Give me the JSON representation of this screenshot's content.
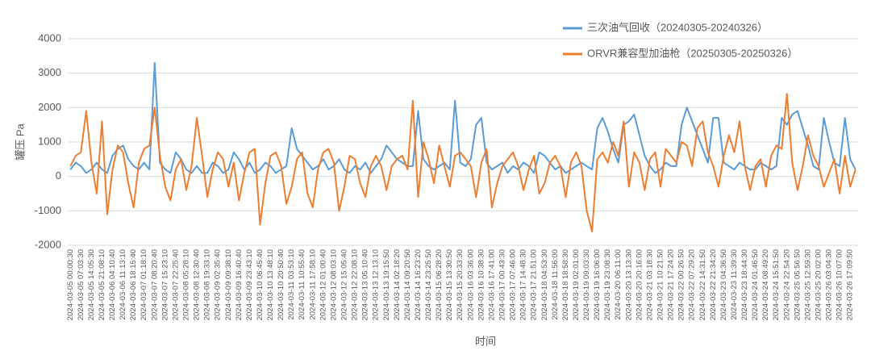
{
  "chart_data": {
    "type": "line",
    "y_label": "罐压 Pa",
    "x_label": "时间",
    "ylim": [
      -2000,
      4000
    ],
    "yticks": [
      -2000,
      -1000,
      0,
      1000,
      2000,
      3000,
      4000
    ],
    "grid": true,
    "legend": "top-right",
    "categories": [
      "2024-03-05 00:00:30",
      null,
      "2024-03-05 07:03:30",
      null,
      "2024-03-05 14:05:30",
      null,
      "2024-03-05 21:08:10",
      null,
      "2024-03-06 04:10:40",
      null,
      "2024-03-06 11:13:10",
      null,
      "2024-03-06 18:15:40",
      null,
      "2024-03-07 01:18:10",
      null,
      "2024-03-07 08:20:40",
      null,
      "2024-03-07 15:23:10",
      null,
      "2024-03-07 22:25:40",
      null,
      "2024-03-08 05:28:10",
      null,
      "2024-03-08 12:30:40",
      null,
      "2024-03-08 19:33:10",
      null,
      "2024-03-09 02:35:40",
      null,
      "2024-03-09 09:38:10",
      null,
      "2024-03-09 16:40:40",
      null,
      "2024-03-09 23:43:10",
      null,
      "2024-03-10 06:45:40",
      null,
      "2024-03-10 13:48:10",
      null,
      "2024-03-10 20:50:40",
      null,
      "2024-03-11 03:53:10",
      null,
      "2024-03-11 10:55:40",
      null,
      "2024-03-11 17:58:10",
      null,
      "2024-03-12 01:00:40",
      null,
      "2024-03-12 08:03:10",
      null,
      "2024-03-12 15:05:40",
      null,
      "2024-03-12 22:08:10",
      null,
      "2024-03-13 05:10:40",
      null,
      "2024-03-13 12:13:10",
      null,
      "2024-03-13 19:15:50",
      null,
      "2024-03-14 02:18:20",
      null,
      "2024-03-14 09:20:50",
      null,
      "2024-03-14 16:23:20",
      null,
      "2024-03-14 23:25:50",
      null,
      "2024-03-15 06:28:20",
      null,
      "2024-03-15 13:30:50",
      null,
      "2024-03-15 20:33:30",
      null,
      "2024-03-16 03:36:00",
      null,
      "2024-03-16 10:38:30",
      null,
      "2024-03-16 17:41:00",
      null,
      "2024-03-17 00:43:30",
      null,
      "2024-03-17 07:46:00",
      null,
      "2024-03-17 14:48:30",
      null,
      "2024-03-17 21:51:00",
      null,
      "2024-03-18 04:53:30",
      null,
      "2024-03-18 11:56:00",
      null,
      "2024-03-18 18:58:30",
      null,
      "2024-03-19 02:01:00",
      null,
      "2024-03-19 09:03:30",
      null,
      "2024-03-19 16:06:00",
      null,
      "2024-03-19 23:08:30",
      null,
      "2024-03-20 06:11:00",
      null,
      "2024-03-20 13:13:30",
      null,
      "2024-03-20 20:16:00",
      null,
      "2024-03-21 03:18:30",
      null,
      "2024-03-21 10:21:50",
      null,
      "2024-03-21 17:24:20",
      null,
      "2024-03-22 00:26:50",
      null,
      "2024-03-22 07:29:20",
      null,
      "2024-03-22 14:31:50",
      null,
      "2024-03-22 21:34:20",
      null,
      "2024-03-23 04:36:50",
      null,
      "2024-03-23 11:39:30",
      null,
      "2024-03-23 18:44:30",
      null,
      "2024-03-24 01:46:50",
      null,
      "2024-03-24 08:49:20",
      null,
      "2024-03-24 15:51:50",
      null,
      "2024-03-24 22:54:20",
      null,
      "2024-03-25 05:56:50",
      null,
      "2024-03-25 12:59:30",
      null,
      "2024-03-25 20:02:00",
      null,
      "2024-03-26 03:04:30",
      null,
      "2024-03-26 10:07:00",
      null,
      "2024-03-26 17:09:50",
      null
    ],
    "series": [
      {
        "name": "三次油气回收（20240305-20240326）",
        "color": "#5b9bd5",
        "values": [
          200,
          400,
          300,
          100,
          200,
          400,
          200,
          100,
          600,
          800,
          900,
          500,
          300,
          200,
          400,
          200,
          3300,
          400,
          200,
          100,
          700,
          500,
          200,
          100,
          300,
          100,
          100,
          400,
          300,
          100,
          200,
          700,
          500,
          200,
          400,
          100,
          200,
          400,
          300,
          100,
          200,
          300,
          1400,
          800,
          600,
          400,
          200,
          300,
          500,
          200,
          300,
          500,
          200,
          100,
          300,
          200,
          400,
          100,
          300,
          500,
          900,
          700,
          500,
          400,
          300,
          300,
          1900,
          500,
          300,
          200,
          300,
          400,
          200,
          2200,
          400,
          300,
          500,
          1500,
          1700,
          400,
          200,
          300,
          400,
          100,
          300,
          200,
          400,
          300,
          100,
          700,
          600,
          400,
          200,
          300,
          100,
          200,
          300,
          400,
          300,
          200,
          1400,
          1700,
          1300,
          800,
          400,
          1500,
          1600,
          1800,
          1200,
          600,
          300,
          100,
          200,
          400,
          300,
          300,
          1500,
          2000,
          1600,
          1200,
          800,
          400,
          1700,
          1700,
          400,
          300,
          200,
          400,
          300,
          200,
          200,
          400,
          300,
          200,
          300,
          1700,
          1500,
          1800,
          1900,
          1400,
          900,
          300,
          200,
          1700,
          1000,
          400,
          300,
          1700,
          500,
          200
        ]
      },
      {
        "name": "ORVR兼容型加油枪（20250305-20250326）",
        "color": "#ed7d31",
        "values": [
          300,
          600,
          700,
          1900,
          400,
          -500,
          1600,
          -1100,
          200,
          900,
          700,
          -200,
          -900,
          400,
          800,
          900,
          2000,
          600,
          -300,
          -700,
          200,
          500,
          -400,
          300,
          1700,
          600,
          -600,
          200,
          700,
          500,
          -300,
          400,
          -700,
          100,
          700,
          800,
          -1400,
          -200,
          600,
          700,
          300,
          -800,
          -300,
          500,
          700,
          -500,
          -900,
          200,
          700,
          800,
          400,
          -1000,
          -300,
          600,
          500,
          -200,
          -600,
          300,
          600,
          300,
          -400,
          300,
          500,
          600,
          200,
          2200,
          -600,
          1000,
          500,
          -200,
          900,
          300,
          -300,
          600,
          700,
          500,
          300,
          -600,
          400,
          800,
          -900,
          -200,
          300,
          500,
          700,
          300,
          -400,
          200,
          600,
          -500,
          -200,
          400,
          600,
          300,
          -600,
          400,
          700,
          300,
          -1000,
          -1600,
          500,
          700,
          400,
          1000,
          600,
          1600,
          -300,
          700,
          400,
          -400,
          500,
          700,
          -300,
          800,
          600,
          400,
          1000,
          900,
          300,
          1400,
          1600,
          700,
          300,
          -300,
          600,
          1200,
          700,
          1600,
          300,
          -400,
          300,
          500,
          -300,
          600,
          900,
          800,
          2400,
          400,
          -400,
          300,
          1200,
          600,
          300,
          -300,
          100,
          500,
          -500,
          600,
          -300,
          200
        ]
      }
    ]
  }
}
